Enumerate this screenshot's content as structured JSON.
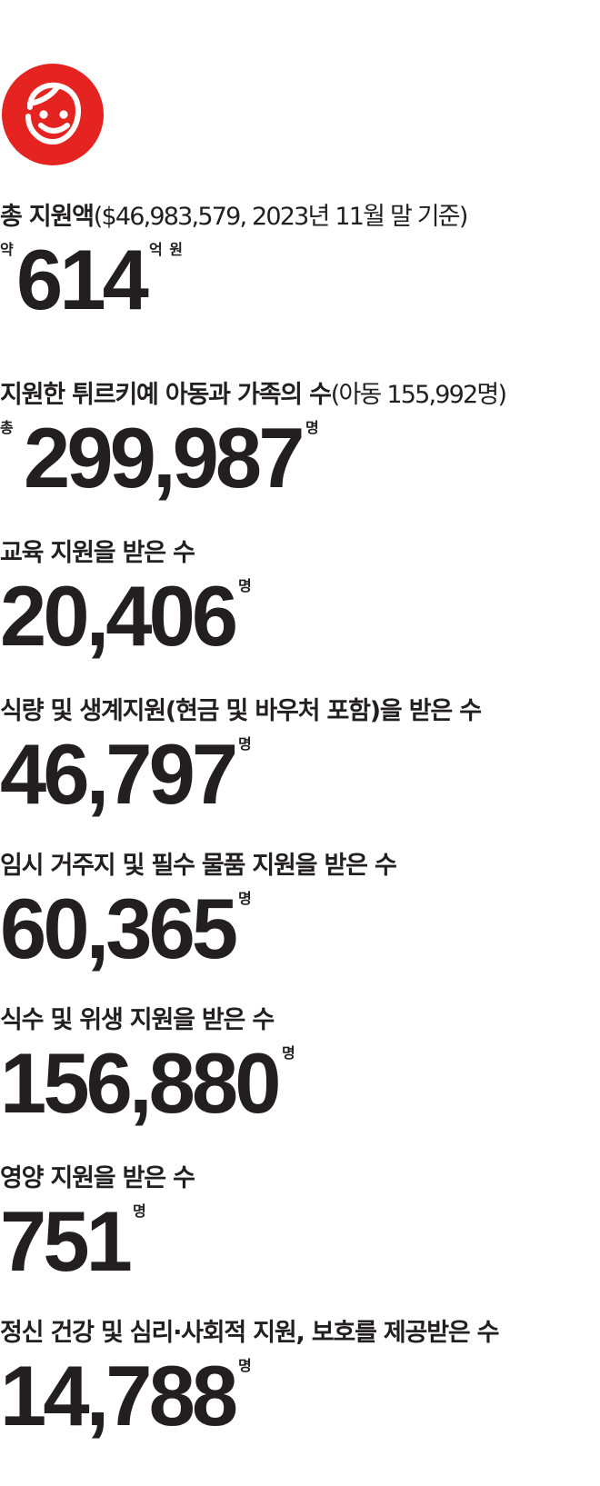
{
  "colors": {
    "accent": "#e52421",
    "text": "#231f20"
  },
  "logo": {
    "icon": "smiley-child-face-icon"
  },
  "stats": [
    {
      "label": "총 지원액",
      "note": "($46,983,579, 2023년 11월 말 기준)",
      "prefix": "약",
      "value": "614",
      "unit": "억 원"
    },
    {
      "label": "지원한 튀르키예 아동과 가족의 수",
      "note": "(아동 155,992명)",
      "prefix": "총",
      "value": "299,987",
      "unit": "명"
    },
    {
      "label": "교육 지원을 받은 수",
      "value": "20,406",
      "unit": "명"
    },
    {
      "label": "식량 및 생계지원(현금 및 바우처 포함)을 받은 수",
      "value": "46,797",
      "unit": "명"
    },
    {
      "label": "임시 거주지 및 필수 물품 지원을 받은 수",
      "value": "60,365",
      "unit": "명"
    },
    {
      "label": "식수 및 위생 지원을 받은 수",
      "value": "156,880",
      "unit": "명"
    },
    {
      "label": "영양 지원을 받은 수",
      "value": "751",
      "unit": "명"
    },
    {
      "label": "정신 건강 및 심리·사회적 지원, 보호를 제공받은 수",
      "value": "14,788",
      "unit": "명"
    }
  ]
}
